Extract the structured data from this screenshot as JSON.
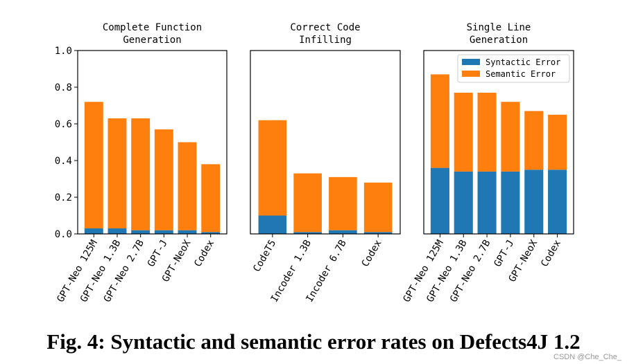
{
  "caption": "Fig. 4: Syntactic and semantic error rates on Defects4J 1.2",
  "watermark": "CSDN @Che_Che_",
  "colors": {
    "syntactic": "#1f77b4",
    "semantic": "#ff7f0e"
  },
  "chart_data": [
    {
      "type": "bar",
      "stacked": true,
      "title": "Complete Function\nGeneration",
      "ylim": [
        0,
        1.0
      ],
      "yticks": [
        "0.0",
        "0.2",
        "0.4",
        "0.6",
        "0.8",
        "1.0"
      ],
      "categories": [
        "GPT-Neo 125M",
        "GPT-Neo 1.3B",
        "GPT-Neo 2.7B",
        "GPT-J",
        "GPT-NeoX",
        "Codex"
      ],
      "series": [
        {
          "name": "Syntactic Error",
          "values": [
            0.03,
            0.03,
            0.02,
            0.02,
            0.02,
            0.01
          ]
        },
        {
          "name": "Semantic Error",
          "values": [
            0.69,
            0.6,
            0.61,
            0.55,
            0.48,
            0.37
          ]
        }
      ]
    },
    {
      "type": "bar",
      "stacked": true,
      "title": "Correct Code\nInfilling",
      "ylim": [
        0,
        1.0
      ],
      "categories": [
        "CodeT5",
        "Incoder 1.3B",
        "Incoder 6.7B",
        "Codex"
      ],
      "series": [
        {
          "name": "Syntactic Error",
          "values": [
            0.1,
            0.01,
            0.02,
            0.01
          ]
        },
        {
          "name": "Semantic Error",
          "values": [
            0.52,
            0.32,
            0.29,
            0.27
          ]
        }
      ]
    },
    {
      "type": "bar",
      "stacked": true,
      "title": "Single Line\nGeneration",
      "ylim": [
        0,
        1.0
      ],
      "legend": "top-right",
      "categories": [
        "GPT-Neo 125M",
        "GPT-Neo 1.3B",
        "GPT-Neo 2.7B",
        "GPT-J",
        "GPT-NeoX",
        "Codex"
      ],
      "series": [
        {
          "name": "Syntactic Error",
          "values": [
            0.36,
            0.34,
            0.34,
            0.34,
            0.35,
            0.35
          ]
        },
        {
          "name": "Semantic Error",
          "values": [
            0.51,
            0.43,
            0.43,
            0.38,
            0.32,
            0.3
          ]
        }
      ]
    }
  ]
}
